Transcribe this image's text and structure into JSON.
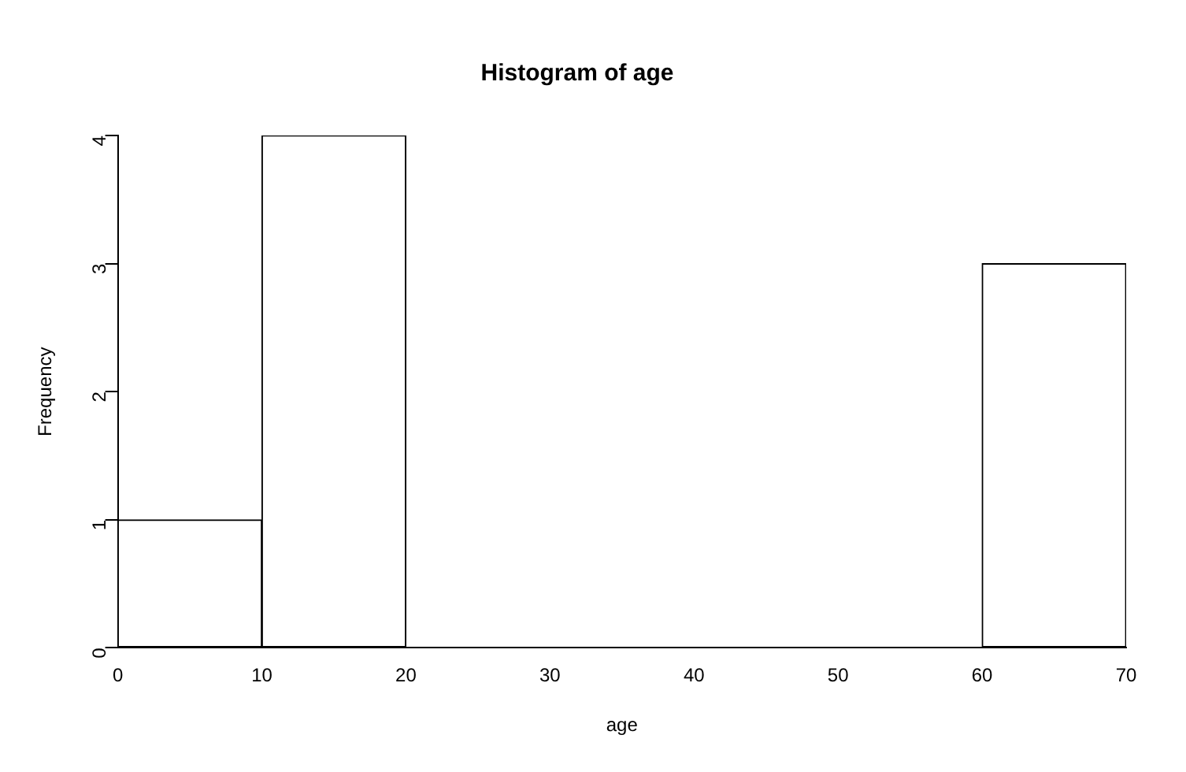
{
  "chart_data": {
    "type": "histogram",
    "title": "Histogram of age",
    "xlabel": "age",
    "ylabel": "Frequency",
    "bins": [
      0,
      10,
      20,
      30,
      40,
      50,
      60,
      70
    ],
    "values": [
      1,
      4,
      0,
      0,
      0,
      0,
      3
    ],
    "color": "#ffffff",
    "xlim": [
      0,
      70
    ],
    "xticks": [
      0,
      10,
      20,
      30,
      40,
      50,
      60,
      70
    ],
    "ylim": [
      0,
      4
    ],
    "yticks": [
      0,
      1,
      2,
      3,
      4
    ],
    "grid": false
  }
}
